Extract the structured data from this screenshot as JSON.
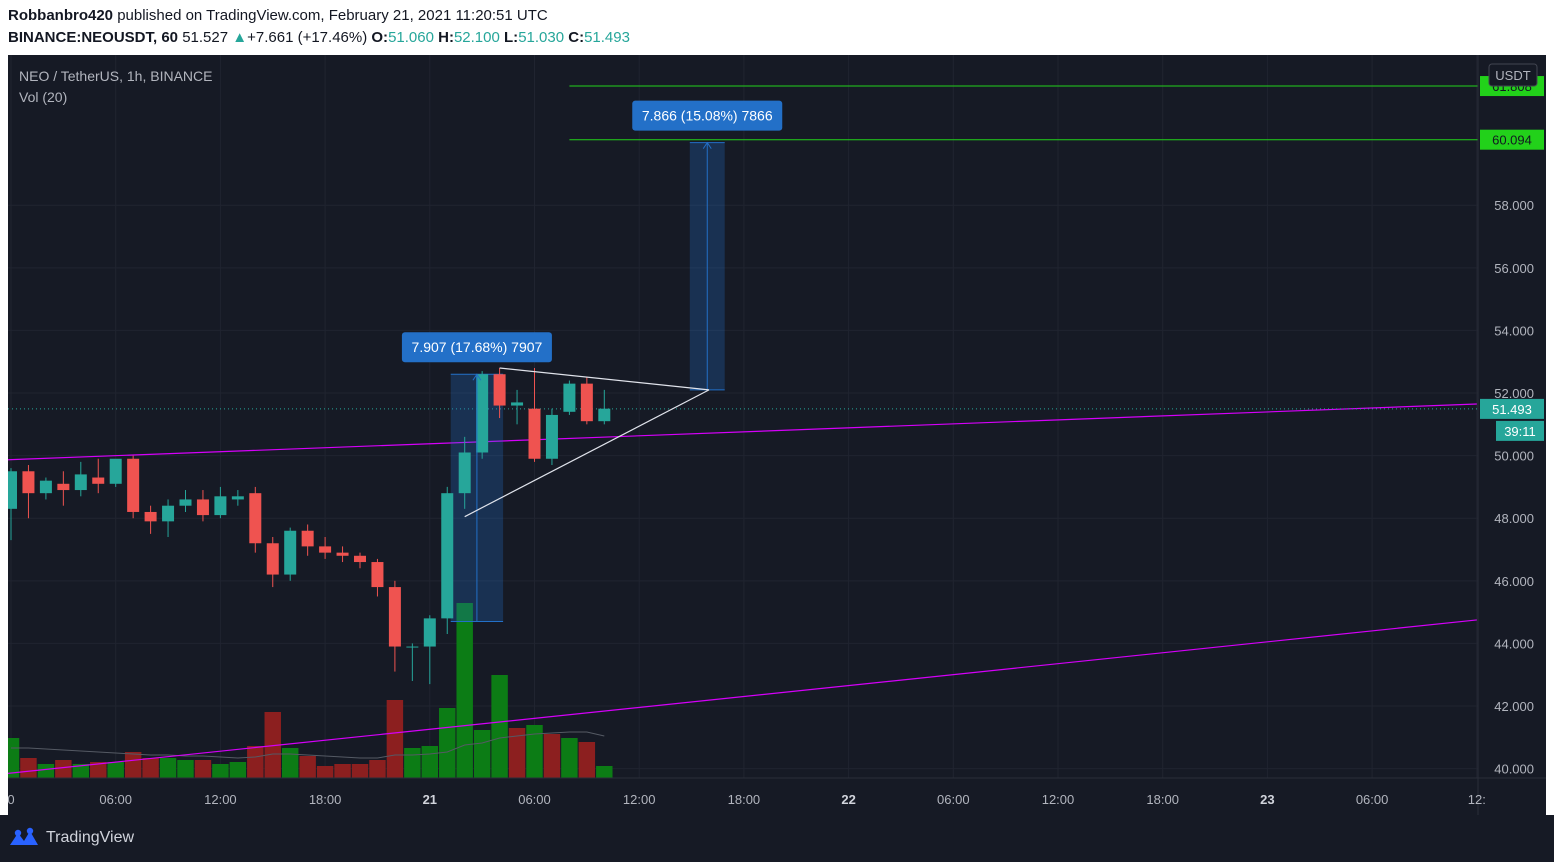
{
  "header": {
    "author": "Robbanbro420",
    "published_text": "published on TradingView.com, February 21, 2021 11:20:51 UTC",
    "symbol": "BINANCE:NEOUSDT, 60",
    "last": "51.527",
    "change_arrow": "▲",
    "change": "+7.661 (+17.46%)",
    "o_label": "O:",
    "o": "51.060",
    "h_label": "H:",
    "h": "52.100",
    "l_label": "L:",
    "l": "51.030",
    "c_label": "C:",
    "c": "51.493"
  },
  "legend": {
    "title": "NEO / TetherUS, 1h, BINANCE",
    "volume": "Vol (20)"
  },
  "footer": {
    "brand": "TradingView",
    "brand_icon": "tradingview-logo-icon"
  },
  "colors": {
    "background": "#161a25",
    "grid": "#202430",
    "up": "#26a69a",
    "down": "#ef5350",
    "vol_up": "#0c7c15",
    "vol_down": "#8c1f1f",
    "magenta": "#d500f9",
    "target_green": "#22d11a",
    "measure_blue": "#2370c8",
    "current_price_tag": "#26a69a"
  },
  "chart_data": {
    "type": "candlestick",
    "title": "NEO / TetherUS, 1h, BINANCE",
    "currency_label": "USDT",
    "y_range": [
      39.7,
      62.8
    ],
    "y_ticks": [
      "40.000",
      "42.000",
      "44.000",
      "46.000",
      "48.000",
      "50.000",
      "52.000",
      "54.000",
      "56.000",
      "58.000"
    ],
    "y_tick_values": [
      40,
      42,
      44,
      46,
      48,
      50,
      52,
      54,
      56,
      58
    ],
    "x_labels": [
      "0",
      "06:00",
      "12:00",
      "18:00",
      "21",
      "06:00",
      "12:00",
      "18:00",
      "22",
      "06:00",
      "12:00",
      "18:00",
      "23",
      "06:00",
      "12:"
    ],
    "x_label_slots": [
      0,
      6,
      12,
      18,
      24,
      30,
      36,
      42,
      48,
      54,
      60,
      66,
      72,
      78,
      84
    ],
    "bold_x_labels": [
      "21",
      "22",
      "23"
    ],
    "candles": [
      {
        "o": 48.3,
        "h": 49.6,
        "l": 47.3,
        "c": 49.5
      },
      {
        "o": 49.5,
        "h": 49.7,
        "l": 48.0,
        "c": 48.8
      },
      {
        "o": 48.8,
        "h": 49.3,
        "l": 48.6,
        "c": 49.2
      },
      {
        "o": 49.1,
        "h": 49.5,
        "l": 48.4,
        "c": 48.9
      },
      {
        "o": 48.9,
        "h": 49.8,
        "l": 48.7,
        "c": 49.4
      },
      {
        "o": 49.3,
        "h": 49.9,
        "l": 48.8,
        "c": 49.1
      },
      {
        "o": 49.1,
        "h": 49.8,
        "l": 49.0,
        "c": 49.9
      },
      {
        "o": 49.9,
        "h": 50.0,
        "l": 48.0,
        "c": 48.2
      },
      {
        "o": 48.2,
        "h": 48.4,
        "l": 47.5,
        "c": 47.9
      },
      {
        "o": 47.9,
        "h": 48.6,
        "l": 47.4,
        "c": 48.4
      },
      {
        "o": 48.4,
        "h": 48.9,
        "l": 48.2,
        "c": 48.6
      },
      {
        "o": 48.6,
        "h": 48.9,
        "l": 47.9,
        "c": 48.1
      },
      {
        "o": 48.1,
        "h": 49.0,
        "l": 48.0,
        "c": 48.7
      },
      {
        "o": 48.6,
        "h": 48.9,
        "l": 48.4,
        "c": 48.7
      },
      {
        "o": 48.8,
        "h": 49.0,
        "l": 46.9,
        "c": 47.2
      },
      {
        "o": 47.2,
        "h": 47.4,
        "l": 45.8,
        "c": 46.2
      },
      {
        "o": 46.2,
        "h": 47.7,
        "l": 46.0,
        "c": 47.6
      },
      {
        "o": 47.6,
        "h": 47.8,
        "l": 46.8,
        "c": 47.1
      },
      {
        "o": 47.1,
        "h": 47.4,
        "l": 46.7,
        "c": 46.9
      },
      {
        "o": 46.9,
        "h": 47.1,
        "l": 46.6,
        "c": 46.8
      },
      {
        "o": 46.8,
        "h": 46.9,
        "l": 46.4,
        "c": 46.6
      },
      {
        "o": 46.6,
        "h": 46.7,
        "l": 45.5,
        "c": 45.8
      },
      {
        "o": 45.8,
        "h": 46.0,
        "l": 43.1,
        "c": 43.9
      },
      {
        "o": 43.9,
        "h": 44.0,
        "l": 42.8,
        "c": 43.9
      },
      {
        "o": 43.9,
        "h": 44.9,
        "l": 42.7,
        "c": 44.8
      },
      {
        "o": 44.8,
        "h": 49.0,
        "l": 44.3,
        "c": 48.8
      },
      {
        "o": 48.8,
        "h": 50.6,
        "l": 48.3,
        "c": 50.1
      },
      {
        "o": 50.1,
        "h": 52.7,
        "l": 49.9,
        "c": 52.6
      },
      {
        "o": 52.6,
        "h": 52.8,
        "l": 51.2,
        "c": 51.6
      },
      {
        "o": 51.6,
        "h": 52.1,
        "l": 51.0,
        "c": 51.7
      },
      {
        "o": 51.5,
        "h": 52.8,
        "l": 49.8,
        "c": 49.9
      },
      {
        "o": 49.9,
        "h": 51.5,
        "l": 49.7,
        "c": 51.3
      },
      {
        "o": 51.4,
        "h": 52.4,
        "l": 51.3,
        "c": 52.3
      },
      {
        "o": 52.3,
        "h": 52.5,
        "l": 51.0,
        "c": 51.1
      },
      {
        "o": 51.1,
        "h": 52.1,
        "l": 51.0,
        "c": 51.5
      }
    ],
    "volume": [
      {
        "v": 0.4,
        "up": true
      },
      {
        "v": 0.2,
        "up": false
      },
      {
        "v": 0.14,
        "up": true
      },
      {
        "v": 0.18,
        "up": false
      },
      {
        "v": 0.14,
        "up": true
      },
      {
        "v": 0.16,
        "up": false
      },
      {
        "v": 0.16,
        "up": true
      },
      {
        "v": 0.26,
        "up": false
      },
      {
        "v": 0.2,
        "up": false
      },
      {
        "v": 0.2,
        "up": true
      },
      {
        "v": 0.18,
        "up": true
      },
      {
        "v": 0.18,
        "up": false
      },
      {
        "v": 0.14,
        "up": true
      },
      {
        "v": 0.16,
        "up": true
      },
      {
        "v": 0.32,
        "up": false
      },
      {
        "v": 0.66,
        "up": false
      },
      {
        "v": 0.3,
        "up": true
      },
      {
        "v": 0.22,
        "up": false
      },
      {
        "v": 0.12,
        "up": false
      },
      {
        "v": 0.14,
        "up": false
      },
      {
        "v": 0.14,
        "up": false
      },
      {
        "v": 0.18,
        "up": false
      },
      {
        "v": 0.78,
        "up": false
      },
      {
        "v": 0.3,
        "up": true
      },
      {
        "v": 0.32,
        "up": true
      },
      {
        "v": 0.7,
        "up": true
      },
      {
        "v": 1.75,
        "up": true
      },
      {
        "v": 0.48,
        "up": true
      },
      {
        "v": 1.03,
        "up": true
      },
      {
        "v": 0.5,
        "up": false
      },
      {
        "v": 0.53,
        "up": true
      },
      {
        "v": 0.44,
        "up": false
      },
      {
        "v": 0.4,
        "up": true
      },
      {
        "v": 0.36,
        "up": false
      },
      {
        "v": 0.12,
        "up": true
      }
    ],
    "volume_ma": [
      0.3,
      0.3,
      0.29,
      0.28,
      0.27,
      0.26,
      0.25,
      0.24,
      0.23,
      0.23,
      0.22,
      0.22,
      0.21,
      0.2,
      0.21,
      0.24,
      0.24,
      0.23,
      0.22,
      0.21,
      0.2,
      0.2,
      0.23,
      0.23,
      0.24,
      0.26,
      0.33,
      0.35,
      0.4,
      0.42,
      0.44,
      0.45,
      0.46,
      0.46,
      0.42
    ],
    "annotations": {
      "trendline_upper": {
        "from": {
          "slot": -1,
          "price": 49.85
        },
        "to": {
          "slot": 84,
          "price": 51.65
        }
      },
      "trendline_lower": {
        "from": {
          "slot": -1,
          "price": 39.8
        },
        "to": {
          "slot": 84,
          "price": 44.75
        }
      },
      "triangle_top": {
        "from": {
          "slot": 28,
          "price": 52.8
        },
        "to": {
          "slot": 40,
          "price": 52.1
        }
      },
      "triangle_bottom": {
        "from": {
          "slot": 26,
          "price": 48.05
        },
        "to": {
          "slot": 40,
          "price": 52.1
        }
      },
      "measure_1": {
        "slot_from": 25.2,
        "slot_to": 28.2,
        "price_from": 44.7,
        "price_to": 52.6,
        "label": "7.907 (17.68%) 7907"
      },
      "measure_2": {
        "slot_from": 38.9,
        "slot_to": 40.9,
        "price_from": 52.1,
        "price_to": 60.0,
        "label": "7.866 (15.08%) 7866"
      },
      "targets": [
        {
          "price": 61.808,
          "label": "61.808"
        },
        {
          "price": 60.094,
          "label": "60.094"
        }
      ],
      "current_price": {
        "price": 51.493,
        "label": "51.493",
        "countdown": "39:11"
      }
    }
  }
}
